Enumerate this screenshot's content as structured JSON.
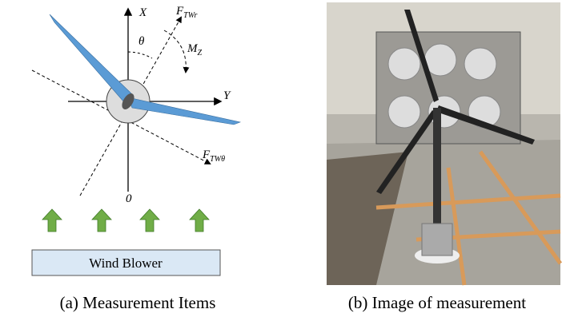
{
  "diagram": {
    "axis_x": "X",
    "axis_y": "Y",
    "angle": "θ",
    "origin": "0",
    "force_r": {
      "main": "F",
      "sub": "TWr"
    },
    "force_theta": {
      "main": "F",
      "sub": "TWθ"
    },
    "moment": {
      "main": "M",
      "sub": "Z"
    },
    "blower": "Wind Blower"
  },
  "captions": [
    "(a) Measurement Items",
    "(b) Image of measurement"
  ]
}
